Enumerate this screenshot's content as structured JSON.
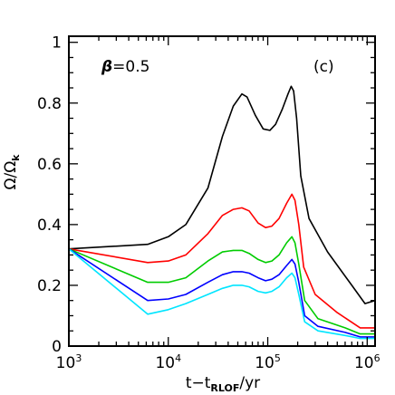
{
  "chart_data": {
    "type": "line",
    "panel_label": "(c)",
    "annotation": {
      "symbol": "β",
      "text": "=0.5"
    },
    "xlabel": {
      "t": "t",
      "minus": "−",
      "t2": "t",
      "sub": "RLOF",
      "unit": "/yr"
    },
    "ylabel": {
      "main": "Ω/Ω",
      "sub": "k"
    },
    "x_scale": "log",
    "xlim": [
      1000,
      1200000
    ],
    "ylim": [
      0,
      1.02
    ],
    "x_ticks": [
      {
        "value": 1000,
        "base": "10",
        "exp": "3"
      },
      {
        "value": 10000,
        "base": "10",
        "exp": "4"
      },
      {
        "value": 100000,
        "base": "10",
        "exp": "5"
      },
      {
        "value": 1000000,
        "base": "10",
        "exp": "6"
      }
    ],
    "y_ticks": [
      {
        "value": 0,
        "label": "0"
      },
      {
        "value": 0.2,
        "label": "0.2"
      },
      {
        "value": 0.4,
        "label": "0.4"
      },
      {
        "value": 0.6,
        "label": "0.6"
      },
      {
        "value": 0.8,
        "label": "0.8"
      },
      {
        "value": 1,
        "label": "1"
      }
    ],
    "series": [
      {
        "color": "#000000",
        "points": [
          [
            1000,
            0.32
          ],
          [
            6200,
            0.335
          ],
          [
            10000,
            0.36
          ],
          [
            15000,
            0.4
          ],
          [
            25000,
            0.52
          ],
          [
            35000,
            0.69
          ],
          [
            45000,
            0.79
          ],
          [
            55000,
            0.83
          ],
          [
            62000,
            0.82
          ],
          [
            75000,
            0.76
          ],
          [
            90000,
            0.715
          ],
          [
            105000,
            0.71
          ],
          [
            120000,
            0.73
          ],
          [
            140000,
            0.78
          ],
          [
            160000,
            0.83
          ],
          [
            172000,
            0.855
          ],
          [
            182000,
            0.84
          ],
          [
            195000,
            0.75
          ],
          [
            215000,
            0.56
          ],
          [
            260000,
            0.42
          ],
          [
            400000,
            0.31
          ],
          [
            700000,
            0.2
          ],
          [
            950000,
            0.14
          ],
          [
            1200000,
            0.15
          ]
        ]
      },
      {
        "color": "#ff0000",
        "points": [
          [
            1000,
            0.32
          ],
          [
            6200,
            0.275
          ],
          [
            10000,
            0.28
          ],
          [
            15000,
            0.3
          ],
          [
            25000,
            0.37
          ],
          [
            35000,
            0.43
          ],
          [
            45000,
            0.45
          ],
          [
            55000,
            0.455
          ],
          [
            65000,
            0.445
          ],
          [
            80000,
            0.405
          ],
          [
            95000,
            0.39
          ],
          [
            110000,
            0.395
          ],
          [
            130000,
            0.42
          ],
          [
            155000,
            0.47
          ],
          [
            175000,
            0.5
          ],
          [
            188000,
            0.48
          ],
          [
            205000,
            0.4
          ],
          [
            230000,
            0.26
          ],
          [
            300000,
            0.17
          ],
          [
            500000,
            0.11
          ],
          [
            850000,
            0.06
          ],
          [
            1200000,
            0.06
          ]
        ]
      },
      {
        "color": "#00cc00",
        "points": [
          [
            1000,
            0.32
          ],
          [
            6200,
            0.21
          ],
          [
            10000,
            0.21
          ],
          [
            15000,
            0.225
          ],
          [
            25000,
            0.28
          ],
          [
            35000,
            0.31
          ],
          [
            45000,
            0.315
          ],
          [
            55000,
            0.315
          ],
          [
            65000,
            0.305
          ],
          [
            80000,
            0.285
          ],
          [
            95000,
            0.275
          ],
          [
            110000,
            0.28
          ],
          [
            130000,
            0.3
          ],
          [
            155000,
            0.34
          ],
          [
            175000,
            0.36
          ],
          [
            188000,
            0.34
          ],
          [
            205000,
            0.27
          ],
          [
            235000,
            0.15
          ],
          [
            320000,
            0.09
          ],
          [
            600000,
            0.06
          ],
          [
            850000,
            0.04
          ],
          [
            1200000,
            0.04
          ]
        ]
      },
      {
        "color": "#0000ff",
        "points": [
          [
            1000,
            0.32
          ],
          [
            6200,
            0.15
          ],
          [
            10000,
            0.155
          ],
          [
            15000,
            0.17
          ],
          [
            25000,
            0.21
          ],
          [
            35000,
            0.235
          ],
          [
            45000,
            0.245
          ],
          [
            55000,
            0.245
          ],
          [
            65000,
            0.24
          ],
          [
            80000,
            0.225
          ],
          [
            95000,
            0.215
          ],
          [
            110000,
            0.22
          ],
          [
            130000,
            0.235
          ],
          [
            155000,
            0.265
          ],
          [
            175000,
            0.285
          ],
          [
            188000,
            0.27
          ],
          [
            205000,
            0.21
          ],
          [
            235000,
            0.1
          ],
          [
            320000,
            0.065
          ],
          [
            600000,
            0.045
          ],
          [
            850000,
            0.03
          ],
          [
            1200000,
            0.03
          ]
        ]
      },
      {
        "color": "#00e5ff",
        "points": [
          [
            1000,
            0.32
          ],
          [
            6200,
            0.105
          ],
          [
            10000,
            0.12
          ],
          [
            15000,
            0.14
          ],
          [
            25000,
            0.17
          ],
          [
            35000,
            0.19
          ],
          [
            45000,
            0.2
          ],
          [
            55000,
            0.2
          ],
          [
            65000,
            0.195
          ],
          [
            80000,
            0.18
          ],
          [
            95000,
            0.175
          ],
          [
            110000,
            0.18
          ],
          [
            130000,
            0.195
          ],
          [
            155000,
            0.225
          ],
          [
            175000,
            0.24
          ],
          [
            188000,
            0.225
          ],
          [
            205000,
            0.17
          ],
          [
            235000,
            0.08
          ],
          [
            320000,
            0.05
          ],
          [
            600000,
            0.035
          ],
          [
            850000,
            0.025
          ],
          [
            1200000,
            0.025
          ]
        ]
      }
    ]
  }
}
